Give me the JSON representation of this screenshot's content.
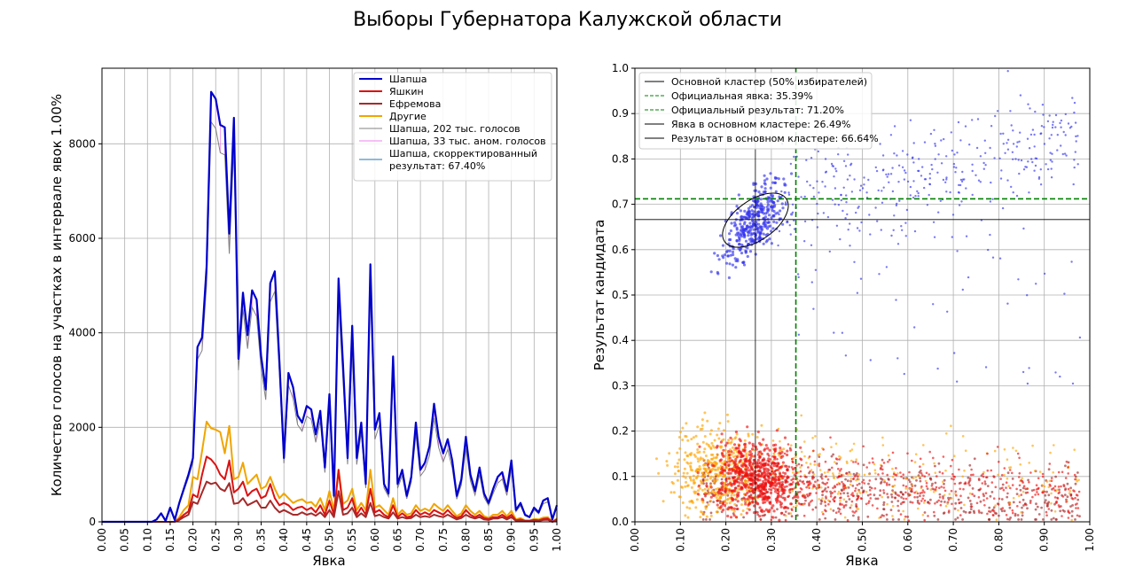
{
  "title": "Выборы Губернатора Калужской области",
  "chart_data": [
    {
      "type": "line",
      "xlabel": "Явка",
      "ylabel": "Количество голосов на участках в интервале явок 1.00%",
      "xlim": [
        0,
        1
      ],
      "ylim": [
        0,
        9600
      ],
      "xticks": [
        "0.00",
        "0.05",
        "0.10",
        "0.15",
        "0.20",
        "0.25",
        "0.30",
        "0.35",
        "0.40",
        "0.45",
        "0.50",
        "0.55",
        "0.60",
        "0.65",
        "0.70",
        "0.75",
        "0.80",
        "0.85",
        "0.90",
        "0.95",
        "1.00"
      ],
      "yticks": [
        "0",
        "2000",
        "4000",
        "6000",
        "8000"
      ],
      "grid": true,
      "legend_position": "top-right",
      "x": [
        0.0,
        0.01,
        0.02,
        0.03,
        0.04,
        0.05,
        0.06,
        0.07,
        0.08,
        0.09,
        0.1,
        0.11,
        0.12,
        0.13,
        0.14,
        0.15,
        0.16,
        0.17,
        0.18,
        0.19,
        0.2,
        0.21,
        0.22,
        0.23,
        0.24,
        0.25,
        0.26,
        0.27,
        0.28,
        0.29,
        0.3,
        0.31,
        0.32,
        0.33,
        0.34,
        0.35,
        0.36,
        0.37,
        0.38,
        0.39,
        0.4,
        0.41,
        0.42,
        0.43,
        0.44,
        0.45,
        0.46,
        0.47,
        0.48,
        0.49,
        0.5,
        0.51,
        0.52,
        0.53,
        0.54,
        0.55,
        0.56,
        0.57,
        0.58,
        0.59,
        0.6,
        0.61,
        0.62,
        0.63,
        0.64,
        0.65,
        0.66,
        0.67,
        0.68,
        0.69,
        0.7,
        0.71,
        0.72,
        0.73,
        0.74,
        0.75,
        0.76,
        0.77,
        0.78,
        0.79,
        0.8,
        0.81,
        0.82,
        0.83,
        0.84,
        0.85,
        0.86,
        0.87,
        0.88,
        0.89,
        0.9,
        0.91,
        0.92,
        0.93,
        0.94,
        0.95,
        0.96,
        0.97,
        0.98,
        0.99,
        1.0
      ],
      "series": [
        {
          "name": "Шапша",
          "color": "#0000cc",
          "width": 2.2,
          "values": [
            0,
            0,
            0,
            0,
            0,
            0,
            0,
            0,
            0,
            0,
            0,
            0,
            50,
            180,
            20,
            300,
            40,
            400,
            700,
            1000,
            1350,
            3700,
            3900,
            5400,
            9100,
            8950,
            8400,
            8350,
            6100,
            8550,
            3450,
            4850,
            3950,
            4900,
            4700,
            3500,
            2800,
            5050,
            5300,
            3400,
            1350,
            3150,
            2850,
            2250,
            2100,
            2450,
            2380,
            1850,
            2350,
            1150,
            2700,
            550,
            5150,
            3300,
            1350,
            4150,
            1350,
            2100,
            800,
            5450,
            1950,
            2300,
            800,
            600,
            3500,
            800,
            1100,
            550,
            950,
            2100,
            1100,
            1250,
            1600,
            2500,
            1800,
            1450,
            1750,
            1300,
            550,
            900,
            1800,
            1000,
            650,
            1150,
            600,
            400,
            700,
            950,
            1050,
            650,
            1300,
            250,
            400,
            150,
            100,
            300,
            200,
            450,
            500,
            50,
            350
          ]
        },
        {
          "name": "Яшкин",
          "color": "#dd1111",
          "width": 2,
          "values": [
            0,
            0,
            0,
            0,
            0,
            0,
            0,
            0,
            0,
            0,
            0,
            0,
            0,
            0,
            0,
            0,
            0,
            60,
            150,
            220,
            580,
            520,
            1000,
            1380,
            1320,
            1200,
            1000,
            900,
            1300,
            620,
            700,
            850,
            550,
            650,
            700,
            500,
            550,
            800,
            500,
            350,
            400,
            350,
            250,
            300,
            320,
            250,
            300,
            200,
            350,
            150,
            450,
            150,
            1100,
            250,
            300,
            500,
            150,
            300,
            150,
            700,
            200,
            250,
            150,
            100,
            350,
            100,
            180,
            100,
            120,
            250,
            150,
            200,
            150,
            250,
            200,
            150,
            250,
            150,
            80,
            120,
            250,
            150,
            100,
            150,
            80,
            60,
            100,
            100,
            150,
            80,
            150,
            30,
            50,
            20,
            20,
            40,
            30,
            60,
            70,
            0,
            50
          ]
        },
        {
          "name": "Ефремова",
          "color": "#a52a2a",
          "width": 2,
          "values": [
            0,
            0,
            0,
            0,
            0,
            0,
            0,
            0,
            0,
            0,
            0,
            0,
            0,
            0,
            0,
            0,
            0,
            40,
            100,
            150,
            420,
            380,
            620,
            850,
            800,
            830,
            700,
            650,
            820,
            380,
            400,
            500,
            350,
            400,
            450,
            300,
            300,
            450,
            300,
            200,
            250,
            200,
            150,
            150,
            200,
            150,
            180,
            130,
            200,
            100,
            250,
            100,
            650,
            150,
            180,
            300,
            100,
            180,
            100,
            400,
            120,
            150,
            100,
            70,
            200,
            70,
            100,
            70,
            80,
            150,
            100,
            120,
            100,
            150,
            120,
            100,
            150,
            100,
            50,
            80,
            150,
            100,
            70,
            100,
            50,
            40,
            70,
            70,
            100,
            50,
            100,
            20,
            30,
            15,
            15,
            25,
            20,
            40,
            45,
            0,
            30
          ]
        },
        {
          "name": "Другие",
          "color": "#f0a500",
          "width": 2,
          "values": [
            0,
            0,
            0,
            0,
            0,
            0,
            0,
            0,
            0,
            0,
            0,
            0,
            0,
            0,
            0,
            0,
            0,
            100,
            250,
            350,
            950,
            900,
            1500,
            2120,
            1980,
            1950,
            1900,
            1450,
            2030,
            900,
            950,
            1250,
            800,
            900,
            1000,
            700,
            750,
            950,
            700,
            500,
            600,
            500,
            400,
            450,
            480,
            400,
            420,
            320,
            500,
            250,
            650,
            250,
            1100,
            380,
            450,
            700,
            250,
            400,
            250,
            1100,
            300,
            350,
            250,
            150,
            500,
            150,
            250,
            150,
            180,
            350,
            230,
            280,
            230,
            380,
            300,
            230,
            350,
            230,
            120,
            180,
            350,
            230,
            150,
            230,
            120,
            80,
            150,
            150,
            230,
            120,
            230,
            50,
            80,
            30,
            30,
            60,
            50,
            90,
            100,
            0,
            70
          ]
        }
      ],
      "legend": [
        {
          "label": "Шапша",
          "color": "#0000cc"
        },
        {
          "label": "Яшкин",
          "color": "#dd1111"
        },
        {
          "label": "Ефремова",
          "color": "#a52a2a"
        },
        {
          "label": "Другие",
          "color": "#f0a500"
        },
        {
          "label": "Шапша, 202 тыс. голосов",
          "color": "#808080"
        },
        {
          "label": "Шапша, 33 тыс. аном. голосов",
          "color": "#ee82ee"
        },
        {
          "label": "Шапша, скорректированный результат: 67.40%",
          "color": "#1f77b4"
        }
      ],
      "legend_lines": [
        [
          "Шапша"
        ],
        [
          "Яшкин"
        ],
        [
          "Ефремова"
        ],
        [
          "Другие"
        ],
        [
          "Шапша, 202 тыс. голосов"
        ],
        [
          "Шапша, 33 тыс. аном. голосов"
        ],
        [
          "Шапша, скорректированный",
          "результат: 67.40%"
        ]
      ]
    },
    {
      "type": "scatter",
      "xlabel": "Явка",
      "ylabel": "Результат кандидата",
      "xlim": [
        0,
        1
      ],
      "ylim": [
        0,
        1
      ],
      "xticks": [
        "0.00",
        "0.10",
        "0.20",
        "0.30",
        "0.40",
        "0.50",
        "0.60",
        "0.70",
        "0.80",
        "0.90",
        "1.00"
      ],
      "yticks": [
        "0.0",
        "0.1",
        "0.2",
        "0.3",
        "0.4",
        "0.5",
        "0.6",
        "0.7",
        "0.8",
        "0.9",
        "1.0"
      ],
      "grid": true,
      "legend_position": "top-left",
      "official_turnout": 0.3539,
      "official_result": 0.712,
      "cluster_turnout": 0.2649,
      "cluster_result": 0.6664,
      "cluster_ellipse": {
        "center": [
          0.265,
          0.665
        ],
        "width": 0.165,
        "height": 0.16,
        "angle_deg": 35
      },
      "point_colors": {
        "Шапша": "#3333ee",
        "Яшкин": "#ee1111",
        "Ефремова": "#a52a2a",
        "Другие": "#ffa500"
      },
      "legend": [
        {
          "label": "Основной кластер (50% избирателей)",
          "color": "#000000",
          "style": "solid"
        },
        {
          "label": "Официальная явка: 35.39%",
          "color": "#008000",
          "style": "dashed"
        },
        {
          "label": "Официальный результат: 71.20%",
          "color": "#008000",
          "style": "dashed"
        },
        {
          "label": "Явка в основном кластере: 26.49%",
          "color": "#000000",
          "style": "solid"
        },
        {
          "label": "Результат в основном кластере: 66.64%",
          "color": "#000000",
          "style": "solid"
        }
      ]
    }
  ]
}
